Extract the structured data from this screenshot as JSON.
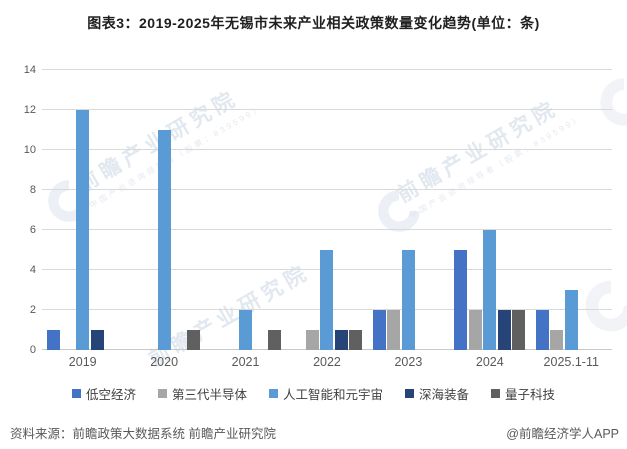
{
  "title": "图表3：2019-2025年无锡市未来产业相关政策数量变化趋势(单位：条)",
  "chart_data": {
    "type": "bar",
    "categories": [
      "2019",
      "2020",
      "2021",
      "2022",
      "2023",
      "2024",
      "2025.1-11"
    ],
    "series": [
      {
        "name": "低空经济",
        "color": "#4472C4",
        "values": [
          1,
          0,
          0,
          0,
          2,
          5,
          2
        ]
      },
      {
        "name": "第三代半导体",
        "color": "#A6A6A6",
        "values": [
          0,
          0,
          0,
          1,
          2,
          2,
          1
        ]
      },
      {
        "name": "人工智能和元宇宙",
        "color": "#5B9BD5",
        "values": [
          12,
          11,
          2,
          5,
          5,
          6,
          3
        ]
      },
      {
        "name": "深海装备",
        "color": "#264478",
        "values": [
          1,
          0,
          0,
          1,
          0,
          2,
          0
        ]
      },
      {
        "name": "量子科技",
        "color": "#606060",
        "values": [
          0,
          1,
          1,
          1,
          0,
          2,
          0
        ]
      }
    ],
    "title": "图表3：2019-2025年无锡市未来产业相关政策数量变化趋势(单位：条)",
    "xlabel": "",
    "ylabel": "",
    "ylim": [
      0,
      14
    ],
    "ytick_step": 2,
    "grid": true,
    "legend_position": "bottom"
  },
  "footer": {
    "source": "资料来源：前瞻政策大数据系统 前瞻产业研究院",
    "credit": "@前瞻经济学人APP"
  },
  "watermark": {
    "text": "前瞻产业研究院",
    "subtext": "中国产业咨询领导者（股票：839599）"
  }
}
